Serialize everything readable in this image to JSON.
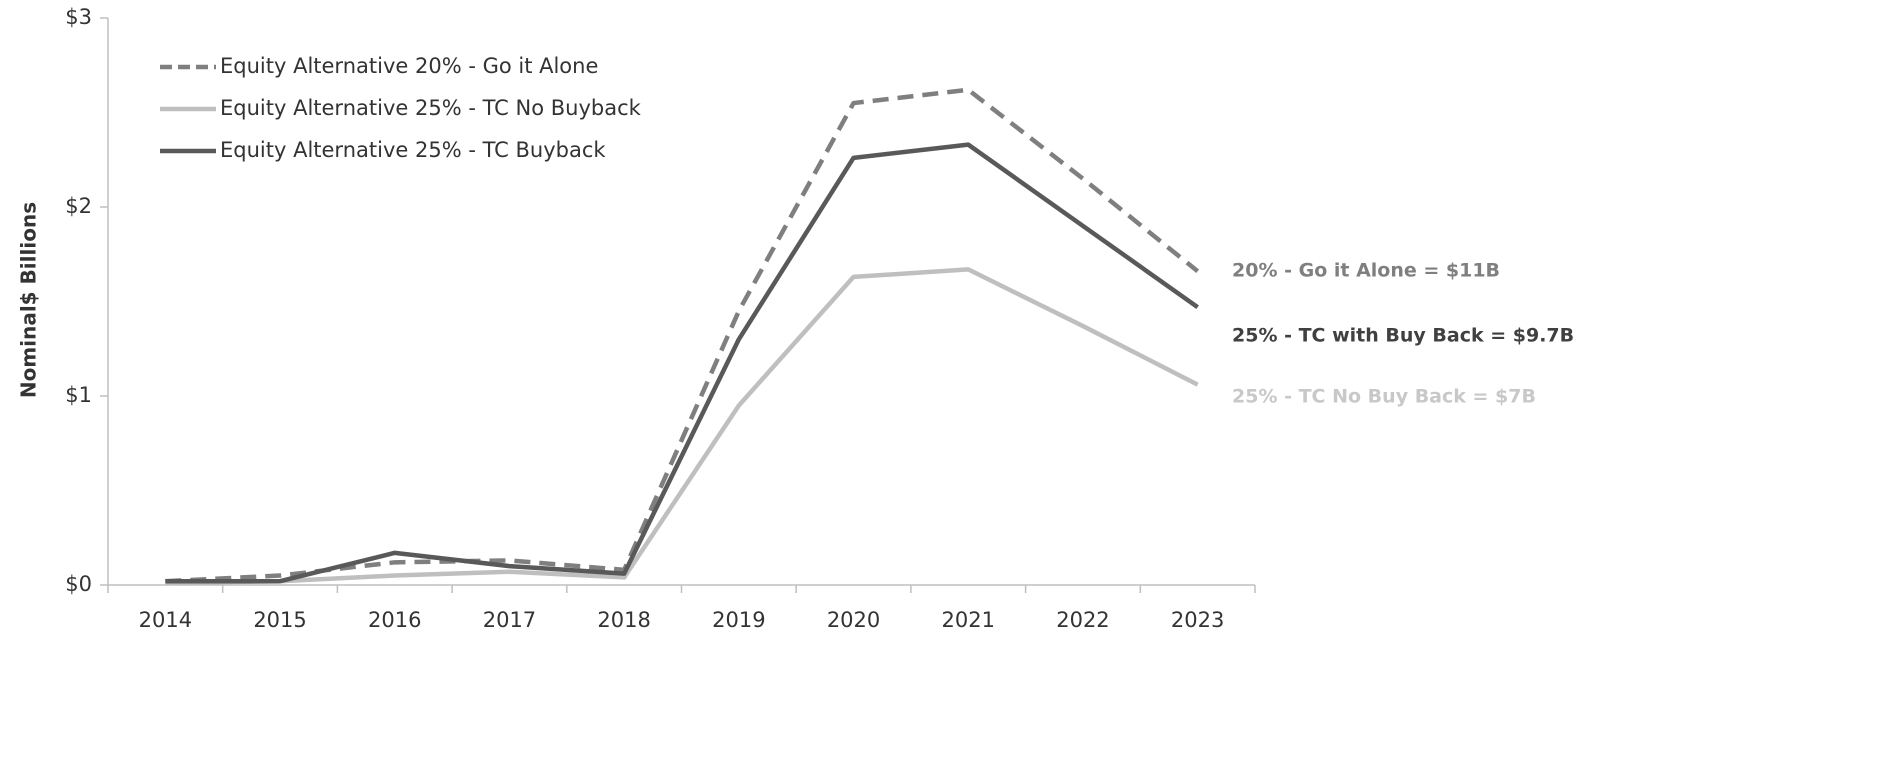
{
  "chart_data": {
    "type": "line",
    "y_label": "Nominal$ Billions",
    "categories": [
      "2014",
      "2015",
      "2016",
      "2017",
      "2018",
      "2019",
      "2020",
      "2021",
      "2022",
      "2023"
    ],
    "series": [
      {
        "name": "Equity Alternative 20% - Go it Alone",
        "color": "#7f7f7f",
        "dashed": true,
        "values": [
          0.02,
          0.05,
          0.12,
          0.13,
          0.08,
          1.45,
          2.55,
          2.62,
          2.15,
          1.66
        ]
      },
      {
        "name": "Equity Alternative 25% - TC No Buyback",
        "color": "#bfbfbf",
        "dashed": false,
        "values": [
          0.01,
          0.02,
          0.05,
          0.07,
          0.04,
          0.95,
          1.63,
          1.67,
          1.37,
          1.06
        ]
      },
      {
        "name": "Equity Alternative 25% - TC Buyback",
        "color": "#595959",
        "dashed": false,
        "values": [
          0.02,
          0.02,
          0.17,
          0.1,
          0.06,
          1.3,
          2.26,
          2.33,
          1.9,
          1.47
        ]
      }
    ],
    "ylim": [
      0,
      3
    ],
    "yticks": [
      {
        "value": 0,
        "label": "$0"
      },
      {
        "value": 1,
        "label": "$1"
      },
      {
        "value": 2,
        "label": "$2"
      },
      {
        "value": 3,
        "label": "$3"
      }
    ],
    "grid": false,
    "legend": "upper left",
    "annotations": [
      {
        "text": "20% - Go it Alone = $11B",
        "color": "#7f7f7f"
      },
      {
        "text": "25% - TC with Buy Back = $9.7B",
        "color": "#404040"
      },
      {
        "text": "25% - TC No Buy Back = $7B",
        "color": "#c8c8c8"
      }
    ]
  }
}
